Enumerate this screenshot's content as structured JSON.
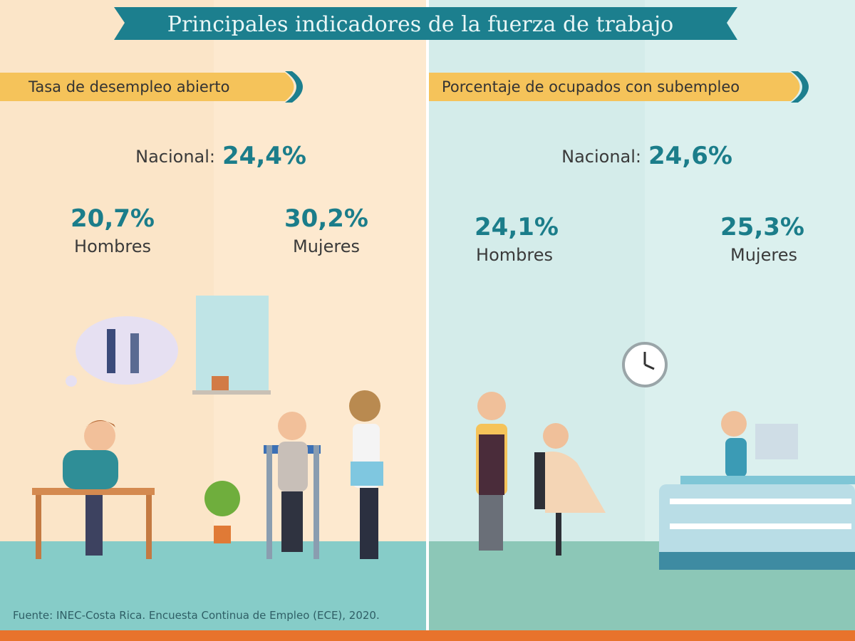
{
  "header": {
    "title": "Principales indicadores de la fuerza de trabajo"
  },
  "panels": [
    {
      "heading": "Tasa de desempleo abierto",
      "national_label": "Nacional:",
      "national_value": "24,4%",
      "groups": [
        {
          "value": "20,7%",
          "label": "Hombres"
        },
        {
          "value": "30,2%",
          "label": "Mujeres"
        }
      ]
    },
    {
      "heading": "Porcentaje de ocupados con subempleo",
      "national_label": "Nacional:",
      "national_value": "24,6%",
      "groups": [
        {
          "value": "24,1%",
          "label": "Hombres"
        },
        {
          "value": "25,3%",
          "label": "Mujeres"
        }
      ]
    }
  ],
  "source": "Fuente: INEC-Costa Rica. Encuesta Continua de Empleo (ECE), 2020."
}
